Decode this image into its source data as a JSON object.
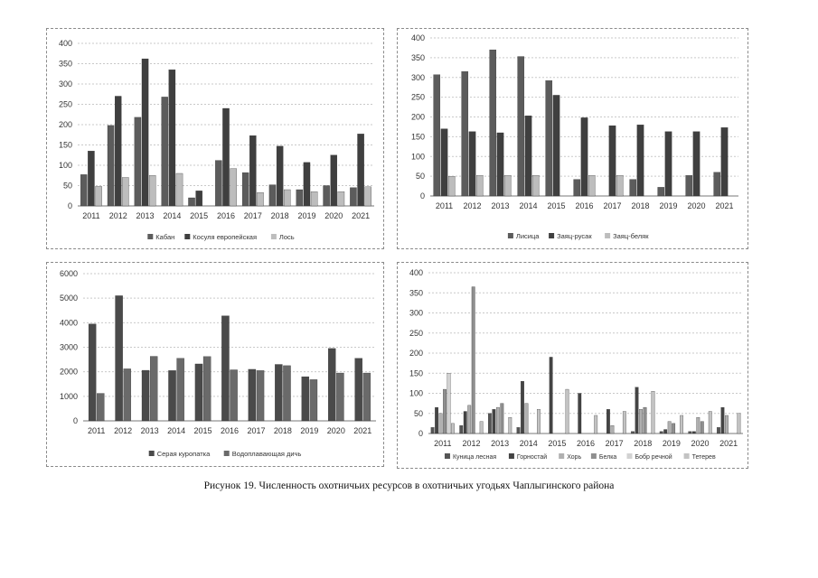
{
  "caption": "Рисунок 19. Численность охотничьих ресурсов в охотничьих угодьях Чаплыгинского района",
  "chart_data": [
    {
      "type": "bar",
      "categories": [
        "2011",
        "2012",
        "2013",
        "2014",
        "2015",
        "2016",
        "2017",
        "2018",
        "2019",
        "2020",
        "2021"
      ],
      "ylim": [
        0,
        400
      ],
      "yticks": [
        0,
        50,
        100,
        150,
        200,
        250,
        300,
        350,
        400
      ],
      "series": [
        {
          "name": "Кабан",
          "color": "#5c5c5c",
          "values": [
            77,
            198,
            218,
            268,
            20,
            112,
            82,
            52,
            40,
            50,
            45
          ]
        },
        {
          "name": "Косуля европейская",
          "color": "#3f3f3f",
          "values": [
            135,
            270,
            362,
            335,
            37,
            240,
            173,
            147,
            107,
            125,
            177
          ]
        },
        {
          "name": "Лось",
          "color": "#bdbdbd",
          "values": [
            48,
            70,
            75,
            80,
            0,
            92,
            33,
            40,
            35,
            35,
            47
          ]
        }
      ]
    },
    {
      "type": "bar",
      "categories": [
        "2011",
        "2012",
        "2013",
        "2014",
        "2015",
        "2016",
        "2017",
        "2018",
        "2019",
        "2020",
        "2021"
      ],
      "ylim": [
        0,
        400
      ],
      "yticks": [
        0,
        50,
        100,
        150,
        200,
        250,
        300,
        350,
        400
      ],
      "series": [
        {
          "name": "Лисица",
          "color": "#5c5c5c",
          "values": [
            307,
            315,
            370,
            353,
            292,
            42,
            0,
            42,
            22,
            52,
            60
          ]
        },
        {
          "name": "Заяц-русак",
          "color": "#3f3f3f",
          "values": [
            170,
            163,
            160,
            203,
            255,
            198,
            178,
            180,
            163,
            163,
            173
          ]
        },
        {
          "name": "Заяц-беляк",
          "color": "#bdbdbd",
          "values": [
            50,
            52,
            52,
            52,
            0,
            52,
            52,
            0,
            0,
            0,
            0
          ]
        }
      ]
    },
    {
      "type": "bar",
      "categories": [
        "2011",
        "2012",
        "2013",
        "2014",
        "2015",
        "2016",
        "2017",
        "2018",
        "2019",
        "2020",
        "2021"
      ],
      "ylim": [
        0,
        6000
      ],
      "yticks": [
        0,
        1000,
        2000,
        3000,
        4000,
        5000,
        6000
      ],
      "series": [
        {
          "name": "Серая куропатка",
          "color": "#4a4a4a",
          "values": [
            3950,
            5100,
            2060,
            2050,
            2320,
            4280,
            2100,
            2300,
            1800,
            2950,
            2550
          ]
        },
        {
          "name": "Водоплавающая дичь",
          "color": "#6a6a6a",
          "values": [
            1120,
            2120,
            2630,
            2550,
            2620,
            2080,
            2050,
            2250,
            1680,
            1950,
            1950
          ]
        }
      ]
    },
    {
      "type": "bar",
      "categories": [
        "2011",
        "2012",
        "2013",
        "2014",
        "2015",
        "2016",
        "2017",
        "2018",
        "2019",
        "2020",
        "2021"
      ],
      "ylim": [
        0,
        400
      ],
      "yticks": [
        0,
        50,
        100,
        150,
        200,
        250,
        300,
        350,
        400
      ],
      "series": [
        {
          "name": "Куница лесная",
          "color": "#555555",
          "values": [
            15,
            20,
            50,
            15,
            0,
            0,
            0,
            5,
            5,
            5,
            15
          ]
        },
        {
          "name": "Горностай",
          "color": "#444444",
          "values": [
            65,
            55,
            60,
            130,
            190,
            100,
            60,
            115,
            10,
            5,
            65
          ]
        },
        {
          "name": "Хорь",
          "color": "#b0b0b0",
          "values": [
            50,
            70,
            65,
            75,
            0,
            0,
            20,
            60,
            30,
            40,
            45
          ]
        },
        {
          "name": "Белка",
          "color": "#8f8f8f",
          "values": [
            110,
            365,
            75,
            0,
            0,
            0,
            0,
            65,
            25,
            30,
            0
          ]
        },
        {
          "name": "Бобр речной",
          "color": "#d2d2d2",
          "values": [
            150,
            0,
            0,
            0,
            0,
            0,
            0,
            0,
            0,
            0,
            0
          ]
        },
        {
          "name": "Тетерев",
          "color": "#c3c3c3",
          "values": [
            25,
            30,
            40,
            60,
            110,
            45,
            55,
            105,
            45,
            55,
            50
          ]
        }
      ]
    }
  ]
}
